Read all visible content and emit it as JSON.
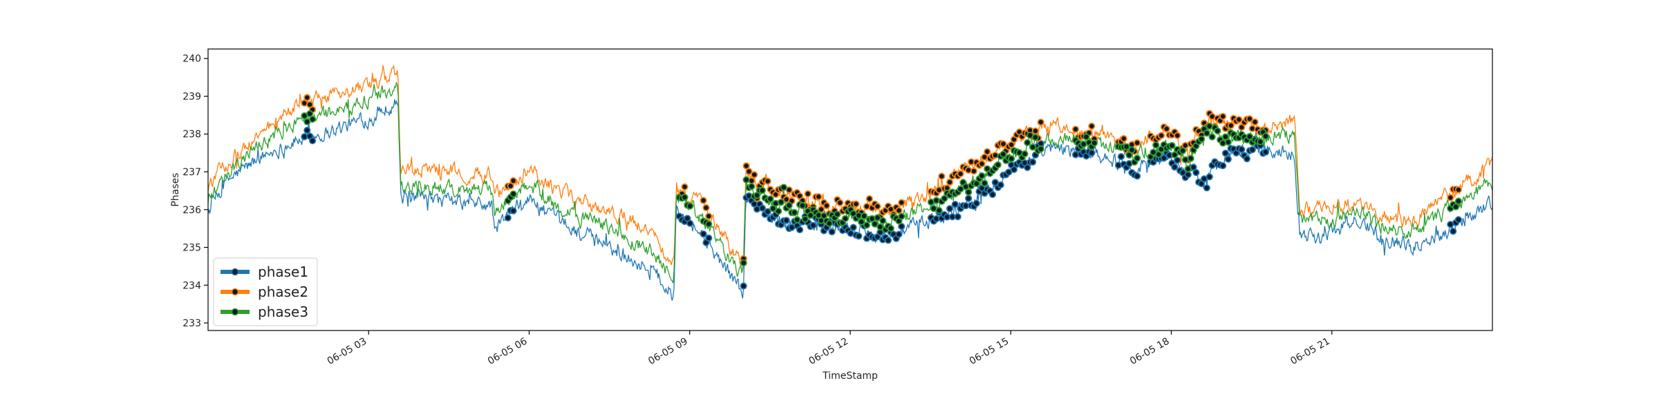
{
  "chart_data": {
    "type": "line",
    "xlabel": "TimeStamp",
    "ylabel": "Phases",
    "x_range": [
      "06-05 00:00",
      "06-05 23:59"
    ],
    "ylim": [
      232.8,
      240.25
    ],
    "y_ticks": [
      233,
      234,
      235,
      236,
      237,
      238,
      239,
      240
    ],
    "x_ticks": [
      {
        "hour": 3,
        "label": "06-05 03"
      },
      {
        "hour": 6,
        "label": "06-05 06"
      },
      {
        "hour": 9,
        "label": "06-05 09"
      },
      {
        "hour": 12,
        "label": "06-05 12"
      },
      {
        "hour": 15,
        "label": "06-05 15"
      },
      {
        "hour": 18,
        "label": "06-05 18"
      },
      {
        "hour": 21,
        "label": "06-05 21"
      }
    ],
    "legend_position": "lower-left",
    "grid": false,
    "series": [
      {
        "name": "phase1",
        "color": "#1f77b4",
        "marker_color": "#0d1b2a",
        "keyframes": [
          [
            0,
            236.0
          ],
          [
            0.4,
            236.8
          ],
          [
            1.0,
            237.4
          ],
          [
            1.6,
            237.8
          ],
          [
            2.3,
            238.1
          ],
          [
            3.0,
            238.4
          ],
          [
            3.55,
            238.9
          ],
          [
            3.6,
            236.3
          ],
          [
            4.5,
            236.2
          ],
          [
            5.3,
            236.1
          ],
          [
            5.35,
            235.5
          ],
          [
            6.0,
            236.3
          ],
          [
            6.5,
            235.7
          ],
          [
            7.5,
            235.0
          ],
          [
            8.3,
            234.4
          ],
          [
            8.7,
            233.7
          ],
          [
            8.75,
            236.2
          ],
          [
            9.3,
            235.2
          ],
          [
            10.0,
            233.8
          ],
          [
            10.05,
            236.3
          ],
          [
            10.5,
            235.8
          ],
          [
            11.2,
            235.6
          ],
          [
            12.0,
            235.5
          ],
          [
            12.7,
            235.3
          ],
          [
            13.5,
            235.7
          ],
          [
            14.0,
            236.0
          ],
          [
            14.5,
            236.5
          ],
          [
            15.0,
            237.1
          ],
          [
            15.8,
            237.6
          ],
          [
            16.6,
            237.5
          ],
          [
            17.3,
            237.1
          ],
          [
            17.9,
            237.4
          ],
          [
            18.3,
            237.0
          ],
          [
            18.7,
            236.8
          ],
          [
            19.0,
            237.5
          ],
          [
            19.7,
            237.6
          ],
          [
            20.3,
            237.5
          ],
          [
            20.4,
            235.4
          ],
          [
            20.8,
            235.3
          ],
          [
            21.5,
            235.7
          ],
          [
            22.0,
            235.3
          ],
          [
            22.5,
            235.0
          ],
          [
            23.2,
            235.5
          ],
          [
            23.99,
            236.2
          ]
        ]
      },
      {
        "name": "phase2",
        "color": "#ff7f0e",
        "marker_color": "#0d1b2a",
        "keyframes": [
          [
            0,
            236.6
          ],
          [
            0.4,
            237.3
          ],
          [
            1.0,
            238.0
          ],
          [
            1.6,
            238.7
          ],
          [
            2.3,
            239.0
          ],
          [
            3.0,
            239.2
          ],
          [
            3.55,
            239.6
          ],
          [
            3.6,
            237.0
          ],
          [
            4.5,
            237.0
          ],
          [
            5.3,
            236.9
          ],
          [
            5.35,
            236.3
          ],
          [
            6.0,
            237.1
          ],
          [
            6.5,
            236.5
          ],
          [
            7.5,
            236.0
          ],
          [
            8.3,
            235.4
          ],
          [
            8.7,
            234.6
          ],
          [
            8.75,
            236.6
          ],
          [
            9.3,
            236.0
          ],
          [
            10.0,
            234.5
          ],
          [
            10.05,
            237.0
          ],
          [
            10.5,
            236.5
          ],
          [
            11.2,
            236.2
          ],
          [
            12.0,
            236.1
          ],
          [
            12.7,
            235.9
          ],
          [
            13.5,
            236.4
          ],
          [
            14.0,
            237.0
          ],
          [
            14.5,
            237.3
          ],
          [
            15.0,
            237.8
          ],
          [
            15.8,
            238.3
          ],
          [
            16.6,
            238.0
          ],
          [
            17.3,
            237.7
          ],
          [
            17.9,
            238.1
          ],
          [
            18.3,
            237.5
          ],
          [
            18.7,
            238.5
          ],
          [
            19.0,
            238.2
          ],
          [
            19.7,
            238.2
          ],
          [
            20.3,
            238.4
          ],
          [
            20.4,
            236.0
          ],
          [
            20.8,
            236.0
          ],
          [
            21.5,
            236.2
          ],
          [
            22.0,
            235.8
          ],
          [
            22.5,
            235.7
          ],
          [
            23.2,
            236.4
          ],
          [
            23.99,
            237.2
          ]
        ]
      },
      {
        "name": "phase3",
        "color": "#2ca02c",
        "marker_color": "#0d1b2a",
        "keyframes": [
          [
            0,
            236.3
          ],
          [
            0.4,
            237.0
          ],
          [
            1.0,
            237.7
          ],
          [
            1.6,
            238.3
          ],
          [
            2.3,
            238.6
          ],
          [
            3.0,
            238.9
          ],
          [
            3.55,
            239.3
          ],
          [
            3.6,
            236.6
          ],
          [
            4.5,
            236.6
          ],
          [
            5.3,
            236.5
          ],
          [
            5.35,
            235.9
          ],
          [
            6.0,
            236.7
          ],
          [
            6.5,
            236.1
          ],
          [
            7.5,
            235.5
          ],
          [
            8.3,
            234.9
          ],
          [
            8.7,
            234.1
          ],
          [
            8.75,
            236.5
          ],
          [
            9.3,
            235.6
          ],
          [
            10.0,
            234.2
          ],
          [
            10.05,
            236.8
          ],
          [
            10.5,
            236.2
          ],
          [
            11.2,
            235.9
          ],
          [
            12.0,
            235.8
          ],
          [
            12.7,
            235.6
          ],
          [
            13.5,
            236.1
          ],
          [
            14.0,
            236.5
          ],
          [
            14.5,
            236.9
          ],
          [
            15.0,
            237.5
          ],
          [
            15.8,
            237.9
          ],
          [
            16.6,
            237.7
          ],
          [
            17.3,
            237.4
          ],
          [
            17.9,
            237.7
          ],
          [
            18.3,
            237.2
          ],
          [
            18.7,
            238.2
          ],
          [
            19.0,
            237.9
          ],
          [
            19.7,
            237.9
          ],
          [
            20.3,
            238.0
          ],
          [
            20.4,
            235.7
          ],
          [
            20.8,
            235.7
          ],
          [
            21.5,
            235.9
          ],
          [
            22.0,
            235.5
          ],
          [
            22.5,
            235.4
          ],
          [
            23.2,
            236.0
          ],
          [
            23.99,
            236.7
          ]
        ]
      }
    ],
    "marked_intervals": [
      [
        1.8,
        2.0
      ],
      [
        5.6,
        5.75
      ],
      [
        8.8,
        9.05
      ],
      [
        9.25,
        9.4
      ],
      [
        10.0,
        13.0
      ],
      [
        13.5,
        15.2
      ],
      [
        15.2,
        15.6
      ],
      [
        16.2,
        16.6
      ],
      [
        17.0,
        17.4
      ],
      [
        17.6,
        18.7
      ],
      [
        18.7,
        19.8
      ],
      [
        23.2,
        23.4
      ]
    ]
  }
}
